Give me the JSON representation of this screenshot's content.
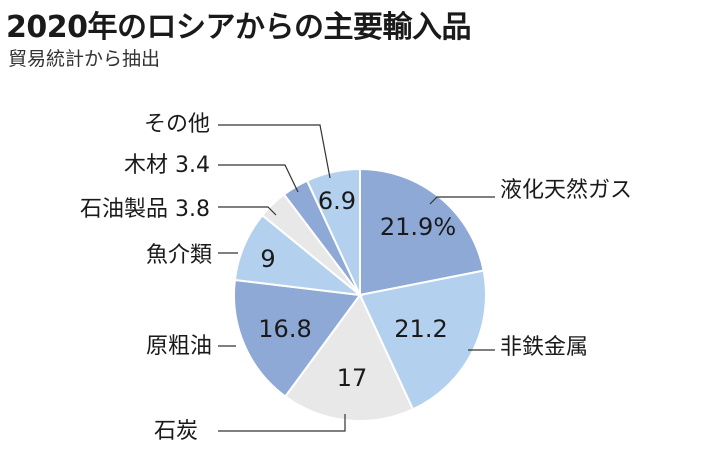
{
  "title": "2020年のロシアからの主要輸入品",
  "subtitle": "貿易統計から抽出",
  "chart_data": {
    "type": "pie",
    "title": "2020年のロシアからの主要輸入品",
    "subtitle": "貿易統計から抽出",
    "slices": [
      {
        "name": "液化天然ガス",
        "value": 21.9,
        "value_label": "21.9%",
        "color": "#8ea9d6"
      },
      {
        "name": "非鉄金属",
        "value": 21.2,
        "value_label": "21.2",
        "color": "#b3d1ee"
      },
      {
        "name": "石炭",
        "value": 17,
        "value_label": "17",
        "color": "#e8e8e8"
      },
      {
        "name": "原粗油",
        "value": 16.8,
        "value_label": "16.8",
        "color": "#8ea9d6"
      },
      {
        "name": "魚介類",
        "value": 9,
        "value_label": "9",
        "color": "#b3d1ee"
      },
      {
        "name": "石油製品 3.8",
        "value": 3.8,
        "value_label": "",
        "color": "#e8e8e8"
      },
      {
        "name": "木材 3.4",
        "value": 3.4,
        "value_label": "",
        "color": "#8ea9d6"
      },
      {
        "name": "その他",
        "value": 6.9,
        "value_label": "6.9",
        "color": "#b3d1ee"
      }
    ]
  }
}
